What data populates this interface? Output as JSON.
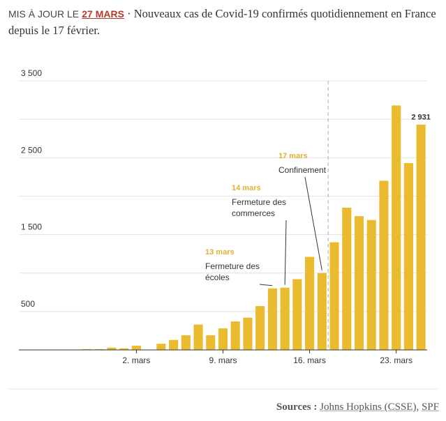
{
  "header": {
    "prefix": "MIS À JOUR LE",
    "date": "27 MARS",
    "title": "· Nouveaux cas de Covid-19 confirmés quotidiennement en France depuis le 17 février."
  },
  "sources": {
    "label": "Sources :",
    "links": [
      "Johns Hopkins (CSSE)",
      "SPF"
    ],
    "separator": ","
  },
  "chart_data": {
    "type": "bar",
    "color": "#eabb2e",
    "categories": [
      null,
      null,
      null,
      null,
      null,
      null,
      null,
      null,
      null,
      "2. mars",
      null,
      null,
      null,
      null,
      null,
      null,
      "9. mars",
      null,
      null,
      null,
      null,
      null,
      null,
      "16. mars",
      null,
      null,
      null,
      null,
      null,
      null,
      "23. mars",
      null,
      null
    ],
    "values": [
      0,
      0,
      0,
      0,
      0,
      10,
      10,
      30,
      20,
      55,
      0,
      80,
      130,
      190,
      330,
      190,
      280,
      370,
      420,
      570,
      800,
      810,
      920,
      1210,
      1000,
      1400,
      1850,
      1740,
      1690,
      2200,
      3180,
      2430,
      2931
    ],
    "value_labels": [
      null,
      null,
      null,
      null,
      null,
      null,
      null,
      null,
      null,
      null,
      null,
      null,
      null,
      null,
      null,
      null,
      null,
      null,
      null,
      null,
      null,
      null,
      null,
      null,
      null,
      null,
      null,
      null,
      null,
      null,
      null,
      null,
      "2 931"
    ],
    "ylim": [
      0,
      3500
    ],
    "yticks": [
      {
        "value": 500,
        "label": "500"
      },
      {
        "value": 1500,
        "label": "1 500"
      },
      {
        "value": 2500,
        "label": "2 500"
      },
      {
        "value": 3500,
        "label": "3 500"
      }
    ],
    "minor_grid": [
      1000,
      2000,
      3000
    ],
    "grid": true,
    "annotations": [
      {
        "date": "13 mars",
        "lines": [
          "Fermeture des",
          "écoles"
        ]
      },
      {
        "date": "14 mars",
        "lines": [
          "Fermeture des",
          "commerces"
        ]
      },
      {
        "date": "17 mars",
        "lines": [
          "Confinement"
        ]
      }
    ]
  }
}
